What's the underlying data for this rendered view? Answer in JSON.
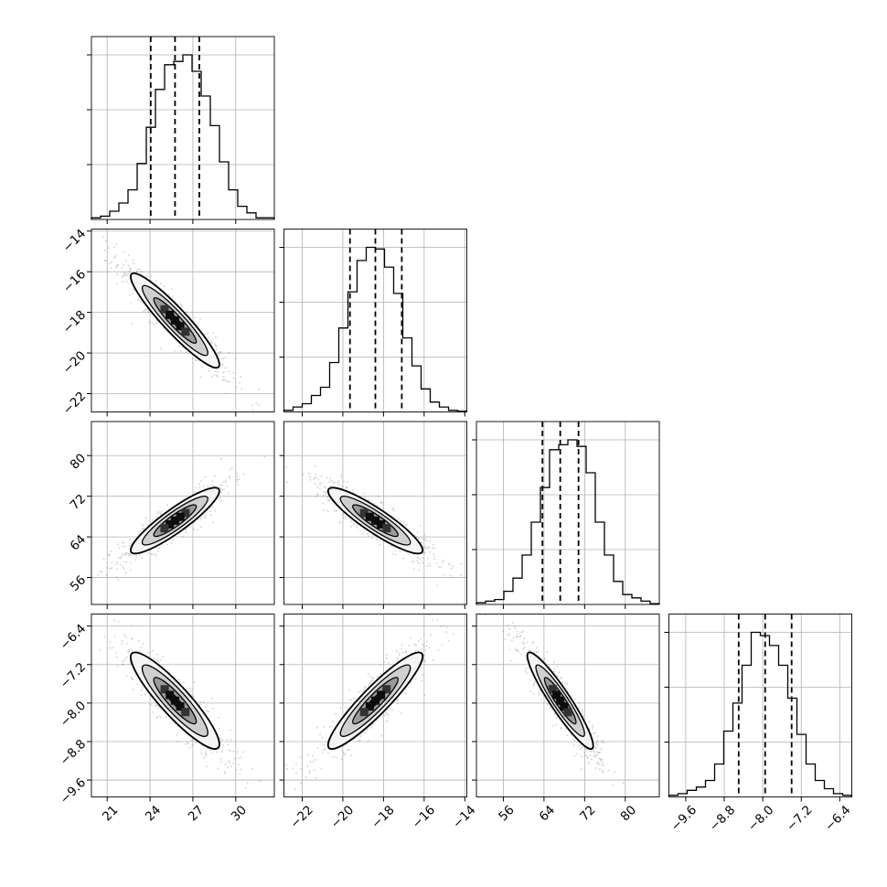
{
  "chart_data": {
    "type": "corner",
    "parameters": [
      {
        "ticks": [
          21,
          24,
          27,
          30
        ],
        "tick_labels": [
          "21",
          "24",
          "27",
          "30"
        ],
        "range": [
          19.9,
          32.7
        ],
        "quantiles": [
          24.05,
          25.75,
          27.45
        ],
        "histogram": {
          "edges_start": 19.9,
          "bin_width": 0.64,
          "counts": [
            0.01,
            0.02,
            0.05,
            0.1,
            0.18,
            0.34,
            0.56,
            0.79,
            0.94,
            0.96,
            1.0,
            0.9,
            0.75,
            0.57,
            0.35,
            0.18,
            0.08,
            0.04,
            0.01,
            0.01
          ]
        }
      },
      {
        "ticks": [
          -22,
          -20,
          -18,
          -16,
          -14
        ],
        "tick_labels": [
          "−22",
          "−20",
          "−18",
          "−16",
          "−14"
        ],
        "range": [
          -22.9,
          -13.9
        ],
        "quantiles": [
          -19.65,
          -18.4,
          -17.1
        ],
        "histogram": {
          "edges_start": -22.9,
          "bin_width": 0.45,
          "counts": [
            0.01,
            0.03,
            0.05,
            0.1,
            0.15,
            0.3,
            0.51,
            0.73,
            0.92,
            1.0,
            0.99,
            0.88,
            0.72,
            0.45,
            0.28,
            0.14,
            0.06,
            0.03,
            0.01,
            0.005
          ]
        }
      },
      {
        "ticks": [
          56,
          64,
          72,
          80
        ],
        "tick_labels": [
          "56",
          "64",
          "72",
          "80"
        ],
        "range": [
          50.7,
          86.7
        ],
        "quantiles": [
          63.7,
          67.2,
          70.8
        ],
        "histogram": {
          "edges_start": 50.7,
          "bin_width": 1.8,
          "counts": [
            0.01,
            0.02,
            0.03,
            0.08,
            0.16,
            0.3,
            0.5,
            0.71,
            0.94,
            0.97,
            1.0,
            0.96,
            0.8,
            0.5,
            0.3,
            0.14,
            0.06,
            0.04,
            0.02,
            0.005
          ]
        }
      },
      {
        "ticks": [
          -9.6,
          -8.8,
          -8.0,
          -7.2,
          -6.4
        ],
        "tick_labels": [
          "−9.6",
          "−8.8",
          "−8.0",
          "−7.2",
          "−6.4"
        ],
        "range": [
          -9.95,
          -6.15
        ],
        "quantiles": [
          -8.5,
          -7.95,
          -7.4
        ],
        "histogram": {
          "edges_start": -9.95,
          "bin_width": 0.19,
          "counts": [
            0.01,
            0.02,
            0.04,
            0.06,
            0.1,
            0.2,
            0.4,
            0.57,
            0.8,
            1.0,
            0.98,
            0.92,
            0.8,
            0.6,
            0.38,
            0.2,
            0.1,
            0.05,
            0.02,
            0.01
          ]
        }
      }
    ],
    "correlations": [
      [
        1,
        -0.93,
        0.9,
        -0.9
      ],
      [
        -0.93,
        1,
        -0.9,
        0.92
      ],
      [
        0.9,
        -0.9,
        1,
        -0.93
      ],
      [
        -0.9,
        0.92,
        -0.93,
        1
      ]
    ],
    "histogram_y_ticks": 3,
    "grid": true,
    "contour_levels": [
      "0.5",
      "1.0",
      "1.5",
      "2.0"
    ],
    "colors": {
      "hist_line": "#000000",
      "scatter": "#777777",
      "grid": "#b0b0b0",
      "frame": "#000000"
    }
  }
}
